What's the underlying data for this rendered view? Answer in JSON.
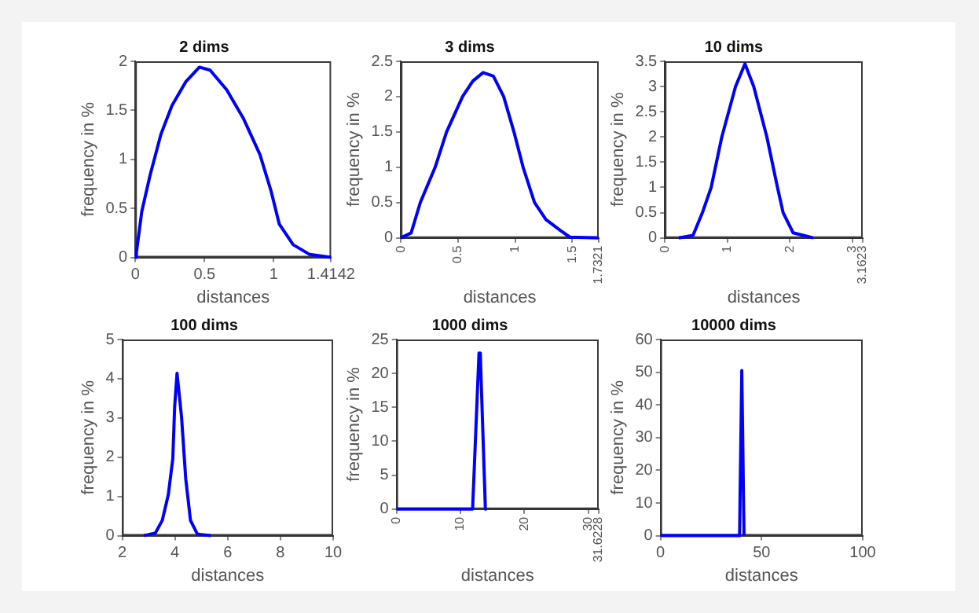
{
  "chart_data": [
    {
      "type": "line",
      "title": "2 dims",
      "xlabel": "distances",
      "ylabel": "frequency in %",
      "color": "#0000ff",
      "marker": "none",
      "x": [
        0,
        0.008,
        0.047,
        0.107,
        0.186,
        0.265,
        0.364,
        0.463,
        0.54,
        0.66,
        0.78,
        0.9,
        0.98,
        1.04,
        1.14,
        1.26,
        1.4142
      ],
      "values": [
        0,
        0.05,
        0.47,
        0.84,
        1.26,
        1.55,
        1.79,
        1.94,
        1.91,
        1.71,
        1.42,
        1.05,
        0.68,
        0.34,
        0.13,
        0.03,
        0
      ],
      "xlim": [
        0,
        1.4142
      ],
      "xticks": [
        0,
        0.5,
        1,
        1.4142
      ],
      "ylim": [
        0,
        2
      ],
      "yticks": [
        0,
        0.5,
        1,
        1.5,
        2
      ]
    },
    {
      "type": "line",
      "title": "3 dims",
      "xlabel": "distances",
      "ylabel": "frequency in %",
      "color": "#0000ff",
      "marker": "none",
      "x": [
        0,
        0.09,
        0.17,
        0.3,
        0.4,
        0.54,
        0.63,
        0.72,
        0.81,
        0.9,
        0.99,
        1.07,
        1.17,
        1.27,
        1.4,
        1.48,
        1.7321
      ],
      "values": [
        0,
        0.07,
        0.5,
        1,
        1.5,
        2,
        2.22,
        2.34,
        2.29,
        2,
        1.5,
        1,
        0.5,
        0.26,
        0.1,
        0.01,
        0
      ],
      "xlim": [
        0,
        1.7321
      ],
      "xticks": [
        0,
        0.5,
        1,
        1.5,
        1.7321
      ],
      "ylim": [
        0,
        2.5
      ],
      "yticks": [
        0,
        0.5,
        1,
        1.5,
        2,
        2.5
      ]
    },
    {
      "type": "line",
      "title": "10 dims",
      "xlabel": "distances",
      "ylabel": "frequency in %",
      "color": "#0000ff",
      "marker": "none",
      "x": [
        0.22,
        0.45,
        0.6,
        0.74,
        0.91,
        1.13,
        1.28,
        1.42,
        1.63,
        1.8,
        1.89,
        2.05,
        2.37
      ],
      "values": [
        0,
        0.05,
        0.5,
        1,
        2,
        3,
        3.45,
        3,
        2,
        1,
        0.5,
        0.1,
        0
      ],
      "xlim": [
        0,
        3.1623
      ],
      "xticks": [
        0,
        1,
        2,
        3,
        3.1623
      ],
      "ylim": [
        0,
        3.5
      ],
      "yticks": [
        0,
        0.5,
        1,
        1.5,
        2,
        2.5,
        3,
        3.5
      ]
    },
    {
      "type": "line",
      "title": "100 dims",
      "xlabel": "distances",
      "ylabel": "frequency in %",
      "color": "#0000ff",
      "marker": "none",
      "x": [
        2.82,
        3.26,
        3.52,
        3.75,
        3.92,
        3.99,
        4.08,
        4.25,
        4.41,
        4.59,
        4.85,
        5.36
      ],
      "values": [
        0,
        0.07,
        0.39,
        1.05,
        1.97,
        3.29,
        4.14,
        3.03,
        1.45,
        0.39,
        0.04,
        0
      ],
      "xlim": [
        2,
        10
      ],
      "xticks": [
        2,
        4,
        6,
        8,
        10
      ],
      "ylim": [
        0,
        5
      ],
      "yticks": [
        0,
        1,
        2,
        3,
        4,
        5
      ]
    },
    {
      "type": "line",
      "title": "1000 dims",
      "xlabel": "distances",
      "ylabel": "frequency in %",
      "color": "#0000ff",
      "marker": "none",
      "x": [
        0,
        11.9,
        12.9,
        13.1,
        13.9,
        14.1
      ],
      "values": [
        0,
        0,
        23,
        23,
        0,
        0
      ],
      "xlim": [
        0,
        31.6228
      ],
      "xticks": [
        0,
        10,
        20,
        30,
        31.6228
      ],
      "ylim": [
        0,
        25
      ],
      "yticks": [
        0,
        5,
        10,
        15,
        20,
        25
      ]
    },
    {
      "type": "line",
      "title": "10000 dims",
      "xlabel": "distances",
      "ylabel": "frequency in %",
      "color": "#0000ff",
      "marker": "none",
      "x": [
        0,
        39.1,
        40.2,
        41.3,
        41.5
      ],
      "values": [
        0,
        0,
        50.5,
        0,
        0
      ],
      "xlim": [
        0,
        100
      ],
      "xticks": [
        0,
        50,
        100
      ],
      "ylim": [
        0,
        60
      ],
      "yticks": [
        0,
        10,
        20,
        30,
        40,
        50,
        60
      ]
    }
  ]
}
